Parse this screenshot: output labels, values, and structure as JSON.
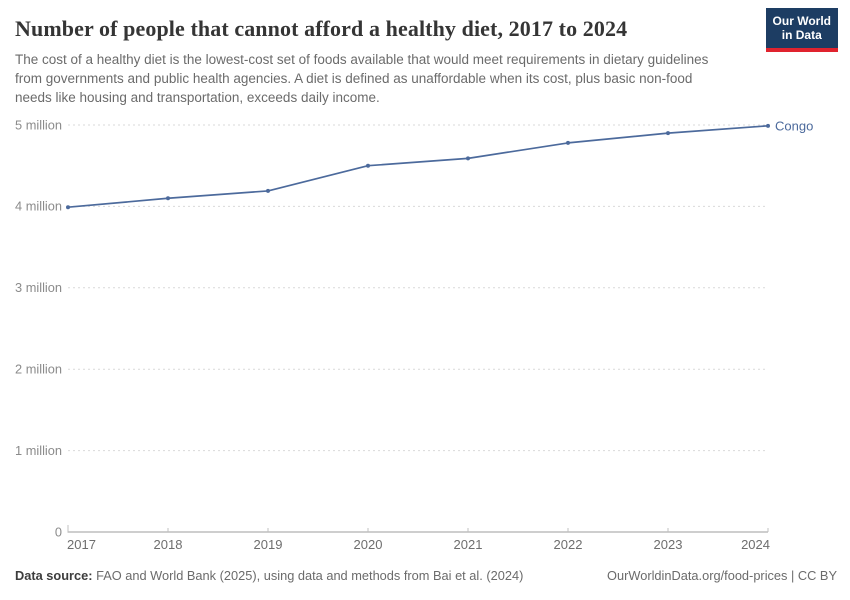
{
  "header": {
    "title": "Number of people that cannot afford a healthy diet, 2017 to 2024",
    "subtitle": "The cost of a healthy diet is the lowest-cost set of foods available that would meet requirements in dietary guidelines from governments and public health agencies. A diet is defined as unaffordable when its cost, plus basic non-food needs like housing and transportation, exceeds daily income.",
    "logo": {
      "line1": "Our World",
      "line2": "in Data",
      "bg_color": "#1d3d63",
      "accent_color": "#e0232e"
    }
  },
  "chart_data": {
    "type": "line",
    "title": "Number of people that cannot afford a healthy diet",
    "x": [
      2017,
      2018,
      2019,
      2020,
      2021,
      2022,
      2023,
      2024
    ],
    "series": [
      {
        "name": "Congo",
        "color": "#4c6a9c",
        "values_million": [
          3.99,
          4.1,
          4.19,
          4.5,
          4.59,
          4.78,
          4.9,
          4.99
        ]
      }
    ],
    "xlabel": "",
    "ylabel": "",
    "ylim": [
      0,
      5
    ],
    "y_ticks": [
      {
        "value": 0,
        "label": "0"
      },
      {
        "value": 1,
        "label": "1 million"
      },
      {
        "value": 2,
        "label": "2 million"
      },
      {
        "value": 3,
        "label": "3 million"
      },
      {
        "value": 4,
        "label": "4 million"
      },
      {
        "value": 5,
        "label": "5 million"
      }
    ],
    "x_ticks": [
      "2017",
      "2018",
      "2019",
      "2020",
      "2021",
      "2022",
      "2023",
      "2024"
    ],
    "grid": "horizontal-dashed",
    "legend_position": "end-of-line-label"
  },
  "footer": {
    "source_label": "Data source:",
    "source_text": " FAO and World Bank (2025), using data and methods from Bai et al. (2024)",
    "link_text": "OurWorldinData.org/food-prices | CC BY"
  },
  "colors": {
    "line": "#4c6a9c",
    "grid": "#d9d9d9",
    "axis": "#9e9e9e",
    "tick": "#c0c0c0",
    "y_label": "#8b8b8b",
    "x_label": "#6e6e6e"
  }
}
